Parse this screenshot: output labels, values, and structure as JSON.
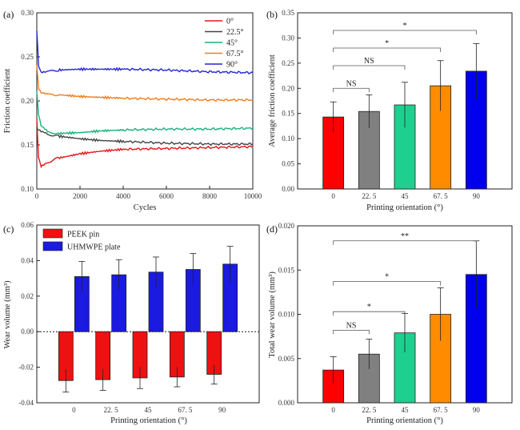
{
  "chart_data": [
    {
      "panel_label": "(a)",
      "type": "line",
      "xlabel": "Cycles",
      "ylabel": "Friction coefficient",
      "xlim": [
        0,
        10000
      ],
      "ylim": [
        0.1,
        0.3
      ],
      "x_ticks": [
        "0",
        "2000",
        "4000",
        "6000",
        "8000",
        "10000"
      ],
      "y_ticks": [
        "0.10",
        "0.15",
        "0.20",
        "0.25",
        "0.30"
      ],
      "legend_position": "top-right",
      "grid": false,
      "series": [
        {
          "name": "0°",
          "color": "#e8141a",
          "x": [
            0,
            80,
            200,
            500,
            1000,
            2000,
            3000,
            4000,
            6000,
            8000,
            10000
          ],
          "values": [
            0.18,
            0.135,
            0.125,
            0.13,
            0.135,
            0.14,
            0.143,
            0.145,
            0.146,
            0.147,
            0.148
          ]
        },
        {
          "name": "22.5°",
          "color": "#444444",
          "x": [
            0,
            80,
            200,
            500,
            1000,
            2000,
            3000,
            4000,
            6000,
            8000,
            10000
          ],
          "values": [
            0.17,
            0.167,
            0.165,
            0.162,
            0.16,
            0.157,
            0.155,
            0.154,
            0.152,
            0.151,
            0.151
          ]
        },
        {
          "name": "45°",
          "color": "#1bb07f",
          "x": [
            0,
            80,
            200,
            500,
            1000,
            2000,
            3000,
            4000,
            6000,
            8000,
            10000
          ],
          "values": [
            0.21,
            0.185,
            0.172,
            0.165,
            0.163,
            0.164,
            0.166,
            0.167,
            0.168,
            0.168,
            0.169
          ]
        },
        {
          "name": "67.5°",
          "color": "#f07d1a",
          "x": [
            0,
            80,
            200,
            500,
            1000,
            2000,
            3000,
            4000,
            6000,
            8000,
            10000
          ],
          "values": [
            0.24,
            0.215,
            0.21,
            0.208,
            0.207,
            0.205,
            0.204,
            0.203,
            0.202,
            0.201,
            0.201
          ]
        },
        {
          "name": "90°",
          "color": "#2424d6",
          "x": [
            0,
            80,
            200,
            500,
            1000,
            2000,
            3000,
            4000,
            6000,
            8000,
            10000
          ],
          "values": [
            0.28,
            0.24,
            0.233,
            0.234,
            0.235,
            0.236,
            0.236,
            0.236,
            0.235,
            0.233,
            0.232
          ]
        }
      ]
    },
    {
      "panel_label": "(b)",
      "type": "bar",
      "xlabel": "Printing orientation (°)",
      "ylabel": "Average friction coefficient",
      "categories": [
        "0",
        "22. 5",
        "45",
        "67. 5",
        "90"
      ],
      "values": [
        0.143,
        0.154,
        0.167,
        0.205,
        0.234
      ],
      "errors": [
        0.03,
        0.033,
        0.045,
        0.05,
        0.055
      ],
      "colors": [
        "#ff0000",
        "#808080",
        "#1fcf8f",
        "#ff8c00",
        "#0000ee"
      ],
      "ylim": [
        0,
        0.35
      ],
      "y_ticks": [
        "0.00",
        "0.05",
        "0.10",
        "0.15",
        "0.20",
        "0.25",
        "0.30",
        "0.35"
      ],
      "significance": [
        {
          "from": 0,
          "to": 1,
          "label": "NS",
          "level": 0.2
        },
        {
          "from": 0,
          "to": 2,
          "label": "NS",
          "level": 0.245
        },
        {
          "from": 0,
          "to": 3,
          "label": "*",
          "level": 0.28
        },
        {
          "from": 0,
          "to": 4,
          "label": "*",
          "level": 0.315
        }
      ]
    },
    {
      "panel_label": "(c)",
      "type": "bar",
      "xlabel": "Printing orientation (°)",
      "ylabel": "Wear volume (mm³)",
      "categories": [
        "0",
        "22. 5",
        "45",
        "67. 5",
        "90"
      ],
      "ylim": [
        -0.04,
        0.06
      ],
      "y_ticks": [
        "-0.04",
        "-0.02",
        "0.00",
        "0.02",
        "0.04",
        "0.06"
      ],
      "legend_position": "top-left",
      "series": [
        {
          "name": "PEEK pin",
          "color": "#ee1111",
          "values": [
            -0.0275,
            -0.027,
            -0.026,
            -0.0255,
            -0.024
          ],
          "errors": [
            0.0065,
            0.006,
            0.006,
            0.0055,
            0.0055
          ]
        },
        {
          "name": "UHMWPE plate",
          "color": "#1a1ae0",
          "values": [
            0.031,
            0.032,
            0.0335,
            0.035,
            0.038
          ],
          "errors": [
            0.0085,
            0.0085,
            0.0085,
            0.009,
            0.01
          ]
        }
      ]
    },
    {
      "panel_label": "(d)",
      "type": "bar",
      "xlabel": "Printing orientation (°)",
      "ylabel": "Total wear volume (mm³)",
      "categories": [
        "0",
        "22. 5",
        "45",
        "67. 5",
        "90"
      ],
      "values": [
        0.0037,
        0.0055,
        0.0079,
        0.01,
        0.0145
      ],
      "errors": [
        0.0015,
        0.0017,
        0.0022,
        0.003,
        0.0038
      ],
      "colors": [
        "#ff0000",
        "#808080",
        "#1fcf8f",
        "#ff8c00",
        "#0000ee"
      ],
      "ylim": [
        0,
        0.02
      ],
      "y_ticks": [
        "0.000",
        "0.005",
        "0.010",
        "0.015",
        "0.020"
      ],
      "significance": [
        {
          "from": 0,
          "to": 1,
          "label": "NS",
          "level": 0.0082
        },
        {
          "from": 0,
          "to": 2,
          "label": "*",
          "level": 0.0103
        },
        {
          "from": 0,
          "to": 3,
          "label": "*",
          "level": 0.0137
        },
        {
          "from": 0,
          "to": 4,
          "label": "**",
          "level": 0.0183
        }
      ]
    }
  ]
}
